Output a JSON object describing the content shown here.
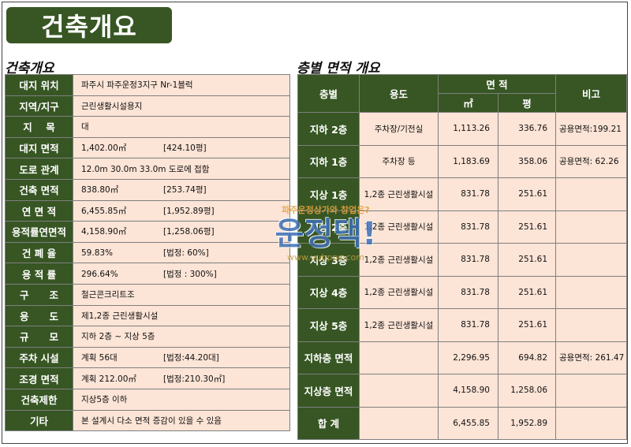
{
  "title": "건축개요",
  "left": {
    "heading": "건축개요",
    "rows": [
      {
        "label": "대지 위치",
        "value": "파주시 파주운정3지구 Nr-1블럭",
        "value2": ""
      },
      {
        "label": "지역/지구",
        "value": "근린생활시설용지",
        "value2": ""
      },
      {
        "label": "지    목",
        "value": "대",
        "value2": ""
      },
      {
        "label": "대지 면적",
        "value": "1,402.00㎡",
        "value2": "[424.10평]"
      },
      {
        "label": "도로 관계",
        "value": "12.0m 30.0m 33.0m 도로에 접함",
        "value2": ""
      },
      {
        "label": "건축 면적",
        "value": "838.80㎡",
        "value2": "[253.74평]"
      },
      {
        "label": "연 면 적",
        "value": "6,455.85㎡",
        "value2": "[1,952.89평]"
      },
      {
        "label": "용적률연면적",
        "value": "4,158.90㎡",
        "value2": "[1,258.06평]"
      },
      {
        "label": "건 폐 율",
        "value": "59.83%",
        "value2": "[법정: 60%]"
      },
      {
        "label": "용 적 률",
        "value": "296.64%",
        "value2": "[법정 : 300%]"
      },
      {
        "label": "구      조",
        "value": "철근콘크리트조",
        "value2": ""
      },
      {
        "label": "용      도",
        "value": "제1,2종 근린생활시설",
        "value2": ""
      },
      {
        "label": "규      모",
        "value": "지하 2층 ~  지상 5층",
        "value2": ""
      },
      {
        "label": "주차 시설",
        "value": "계획 56대",
        "value2": "[법정:44.20대]"
      },
      {
        "label": "조경 면적",
        "value": "계획 212.00㎡",
        "value2": "[법정:210.30㎡]"
      },
      {
        "label": "건축제한",
        "value": "지상5층 이하",
        "value2": ""
      },
      {
        "label": "기타",
        "value": "본 설계시 다소 면적 증감이 있을 수 있음",
        "value2": ""
      }
    ]
  },
  "right": {
    "heading": "층별 면적 개요",
    "headers": {
      "floor": "층별",
      "use": "용도",
      "area": "면 적",
      "sqm": "㎡",
      "pyeong": "평",
      "note": "비고"
    },
    "rows": [
      {
        "floor": "지하 2층",
        "use": "주차장/기전실",
        "sqm": "1,113.26",
        "pyeong": "336.76",
        "note": "공용면적:199.21"
      },
      {
        "floor": "지하 1층",
        "use": "주차장 등",
        "sqm": "1,183.69",
        "pyeong": "358.06",
        "note": "공용면적: 62.26"
      },
      {
        "floor": "지상 1층",
        "use": "1,2종 근린생활시설",
        "sqm": "831.78",
        "pyeong": "251.61",
        "note": ""
      },
      {
        "floor": "지상 2층",
        "use": "1,2종 근린생활시설",
        "sqm": "831.78",
        "pyeong": "251.61",
        "note": ""
      },
      {
        "floor": "지상 3층",
        "use": "1,2종 근린생활시설",
        "sqm": "831.78",
        "pyeong": "251.61",
        "note": ""
      },
      {
        "floor": "지상 4층",
        "use": "1,2종 근린생활시설",
        "sqm": "831.78",
        "pyeong": "251.61",
        "note": ""
      },
      {
        "floor": "지상 5층",
        "use": "1,2종 근린생활시설",
        "sqm": "831.78",
        "pyeong": "251.61",
        "note": ""
      },
      {
        "floor": "지하층 면적",
        "use": "",
        "sqm": "2,296.95",
        "pyeong": "694.82",
        "note": "공용면적: 261.47"
      },
      {
        "floor": "지상층 면적",
        "use": "",
        "sqm": "4,158.90",
        "pyeong": "1,258.06",
        "note": ""
      },
      {
        "floor": "합 계",
        "use": "",
        "sqm": "6,455.85",
        "pyeong": "1,952.89",
        "note": ""
      }
    ]
  },
  "watermark": {
    "line1": "파주운정상가와 창업은?",
    "line2": "운정댁!",
    "line3": "www.uubppo.com"
  },
  "colors": {
    "header_green": "#375623",
    "cell_peach": "#fce4d6"
  }
}
